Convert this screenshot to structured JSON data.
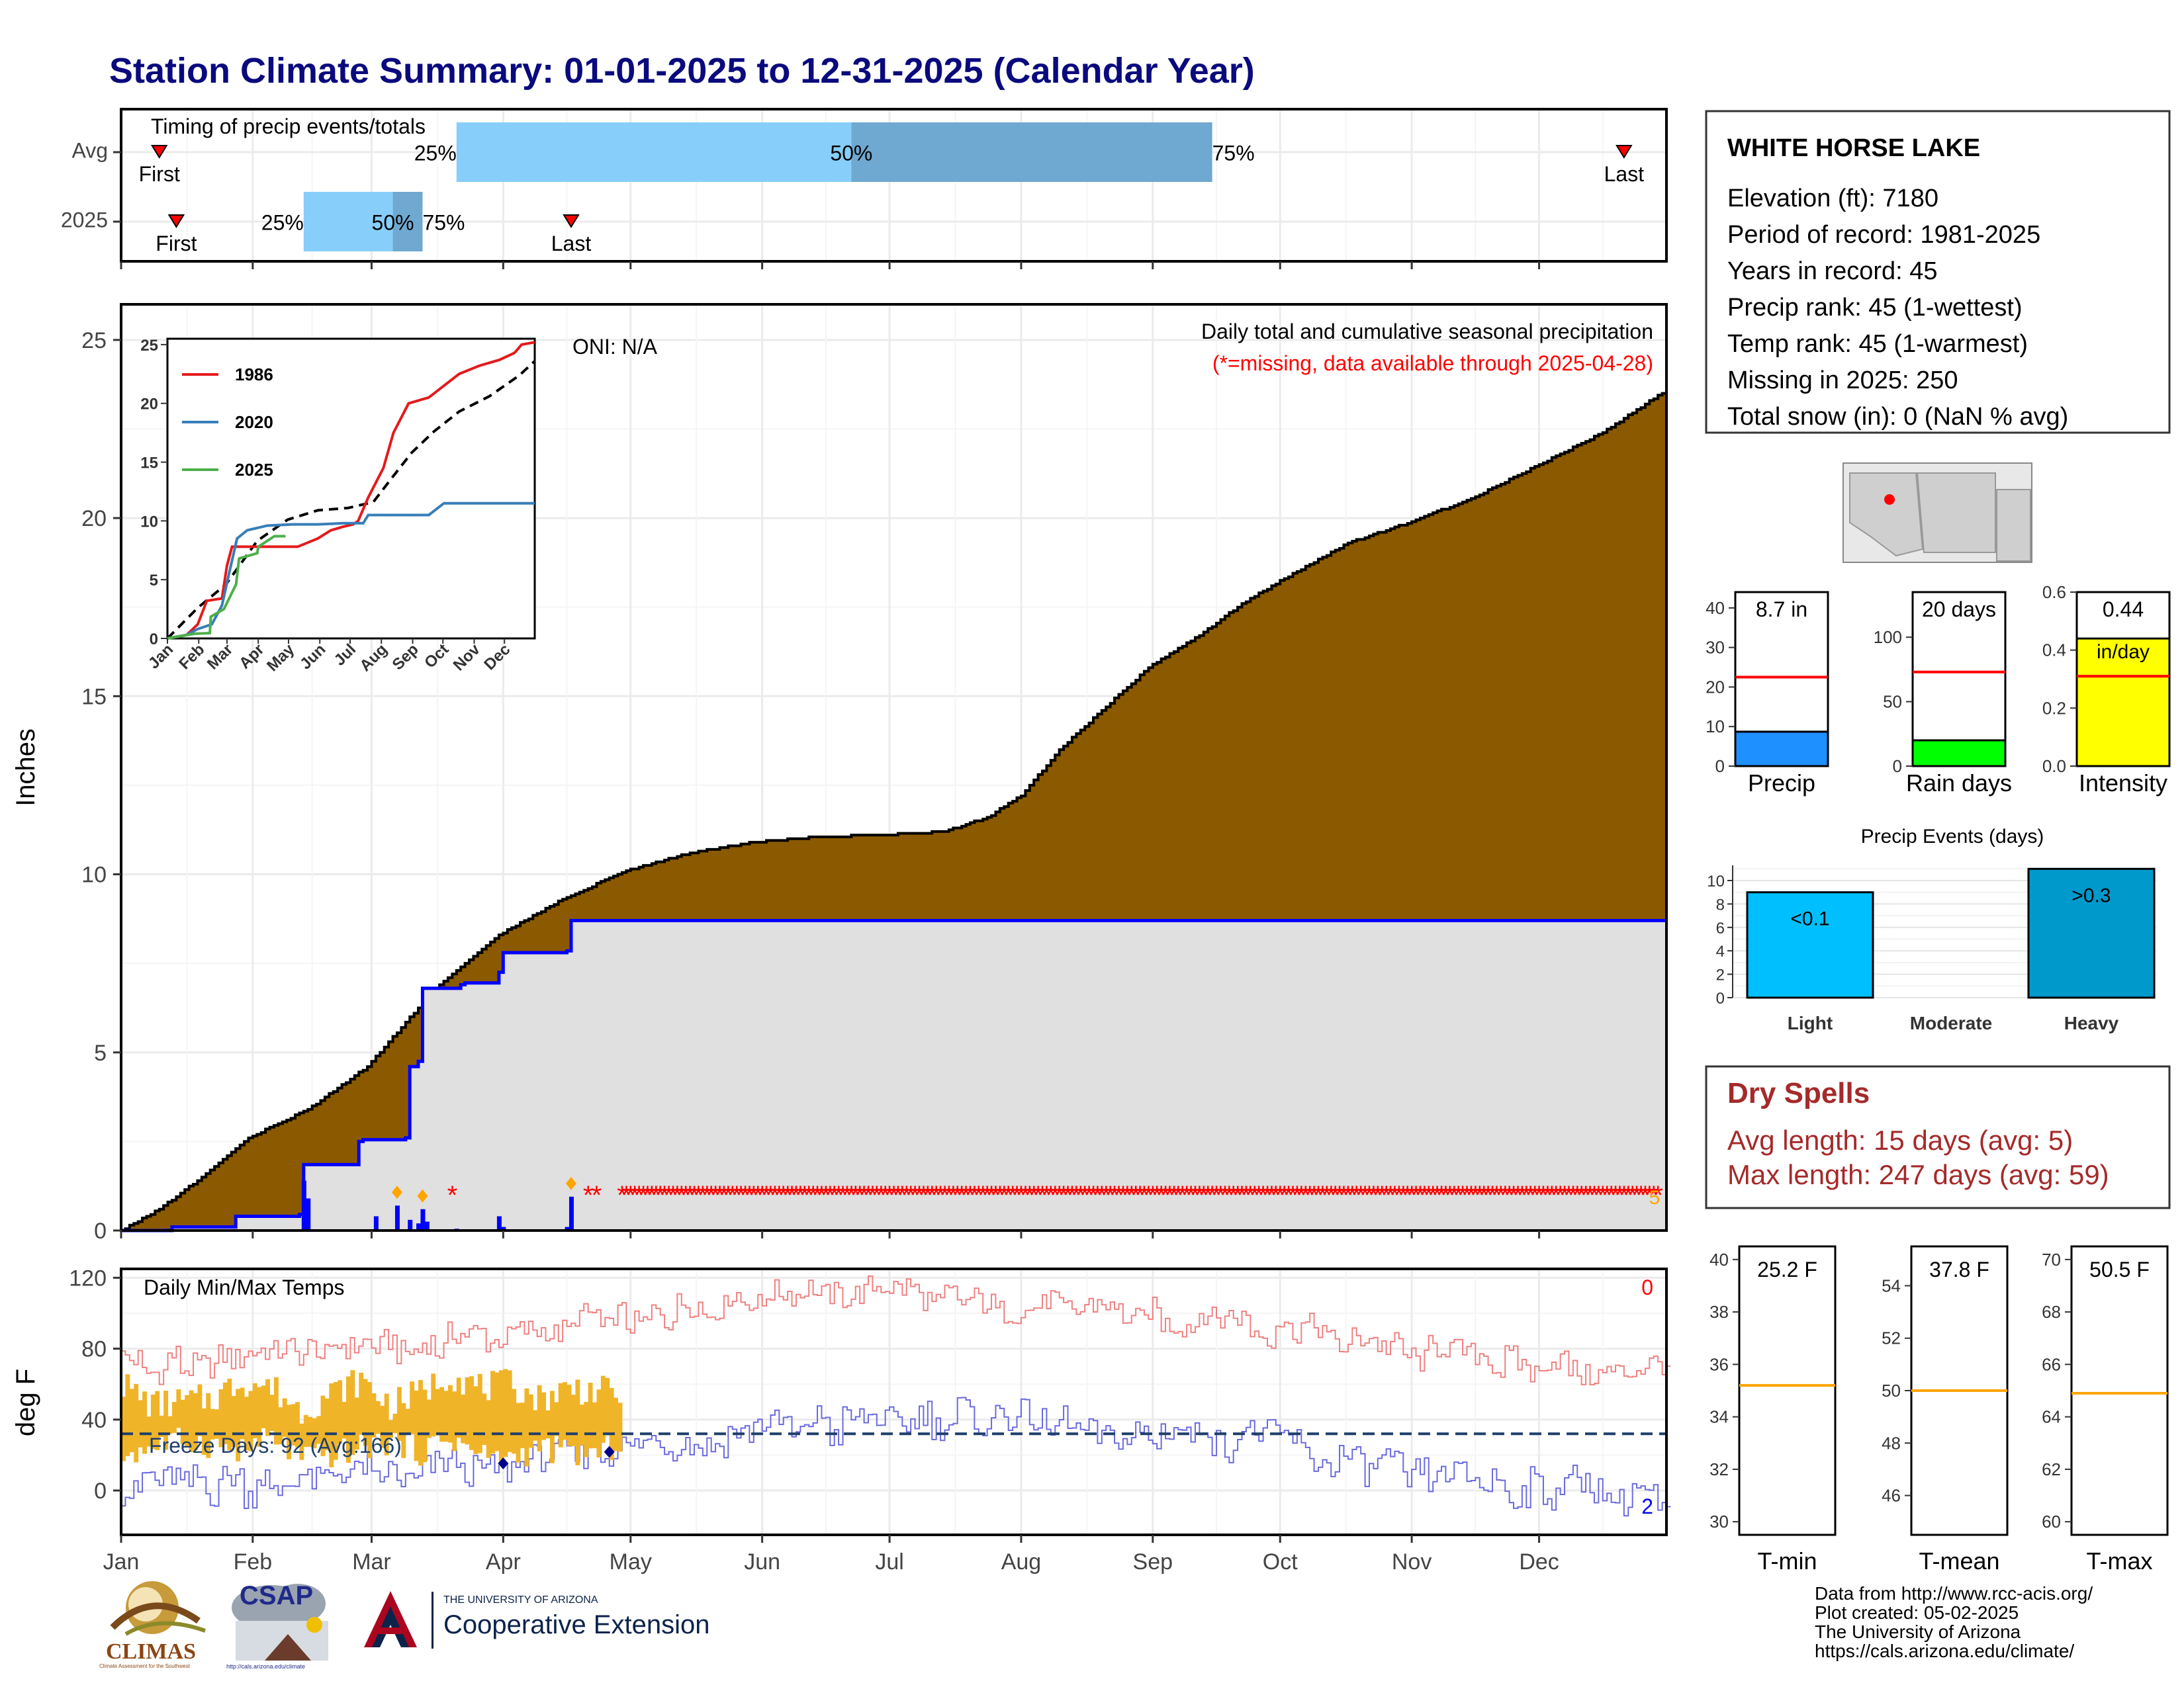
{
  "title": "Station Climate Summary: 01-01-2025 to 12-31-2025 (Calendar Year)",
  "colors": {
    "title": "#0a0a7e",
    "precip_fill": "#8b5a00",
    "obs_fill": "#e0e0e0",
    "obs_line": "#0000ff",
    "q_light": "#87cefa",
    "q_dark": "#6fa8d0",
    "missing": "#ff0000",
    "dry_spells": "#a52a2a",
    "freeze_fill": "#f0b429",
    "tmax_line": "#f08080",
    "tmin_line": "#6a6ae0",
    "avg_line": "#1f3f6a",
    "bar_precip": "#1e90ff",
    "bar_rain": "#00ff00",
    "bar_intensity": "#ffff00",
    "bar_light": "#00bfff",
    "bar_heavy": "#0099cc",
    "orange_line": "#ffa500"
  },
  "months": [
    "Jan",
    "Feb",
    "Mar",
    "Apr",
    "May",
    "Jun",
    "Jul",
    "Aug",
    "Sep",
    "Oct",
    "Nov",
    "Dec"
  ],
  "timing": {
    "label": "Timing of precip events/totals",
    "rows": [
      "Avg",
      "2025"
    ],
    "first_label": "First",
    "last_label": "Last",
    "p25": "25%",
    "p50": "50%",
    "p75": "75%",
    "avg": {
      "first_day": 10,
      "p25_day": 80,
      "p50_day": 173,
      "p75_day": 258,
      "last_day": 355
    },
    "y2025": {
      "first_day": 14,
      "p25_day": 44,
      "p50_day": 65,
      "p75_day": 72,
      "last_day": 107
    }
  },
  "chart_data": [
    {
      "type": "area",
      "title": "Daily total and cumulative seasonal precipitation",
      "subtitle": "(*=missing, data available through 2025-04-28)",
      "ylabel": "Inches",
      "ylim": [
        0,
        26
      ],
      "yticks": [
        0,
        5,
        10,
        15,
        20,
        25
      ],
      "oni": "ONI: N/A",
      "missing_count_label": "5",
      "avg_cumulative": {
        "day": [
          1,
          10,
          20,
          31,
          45,
          59,
          75,
          90,
          105,
          120,
          135,
          150,
          165,
          180,
          195,
          205,
          213,
          222,
          232,
          243,
          255,
          265,
          275,
          290,
          305,
          320,
          335,
          350,
          365
        ],
        "inches": [
          0,
          0.6,
          1.5,
          2.6,
          3.4,
          4.6,
          6.8,
          8.3,
          9.3,
          10.1,
          10.6,
          10.9,
          11.05,
          11.1,
          11.2,
          11.6,
          12.2,
          13.5,
          14.6,
          15.8,
          16.7,
          17.6,
          18.3,
          19.3,
          19.9,
          20.6,
          21.5,
          22.4,
          23.6
        ]
      },
      "obs_cumulative": {
        "day": [
          1,
          13,
          28,
          43,
          44,
          57,
          58,
          68,
          69,
          71,
          72,
          81,
          82,
          90,
          91,
          106,
          107,
          118
        ],
        "inches": [
          0,
          0.1,
          0.4,
          0.45,
          1.85,
          2.5,
          2.55,
          2.6,
          4.6,
          4.75,
          6.8,
          6.9,
          6.95,
          7.25,
          7.8,
          7.85,
          8.7,
          8.7
        ]
      },
      "daily_bars": {
        "day": [
          12,
          25,
          44,
          45,
          61,
          66,
          69,
          71,
          72,
          73,
          80,
          90,
          91,
          106,
          107
        ],
        "inches": [
          0.05,
          0.02,
          1.4,
          0.9,
          0.4,
          0.7,
          0.3,
          0.2,
          0.6,
          0.25,
          0.05,
          0.4,
          0.1,
          0.1,
          0.95
        ]
      },
      "snow_markers_day": [
        66,
        72,
        107
      ],
      "missing_days_start": 119,
      "missing_days_sparse": [
        79,
        111,
        113
      ]
    },
    {
      "type": "line",
      "title": "Daily Min/Max Temps",
      "ylabel": "deg F",
      "ylim": [
        -25,
        125
      ],
      "yticks": [
        0,
        40,
        80,
        120
      ],
      "freeze_label": "Freeze Days: 92 (Avg:166)",
      "freeze_line": 32,
      "count_top": "0",
      "count_bottom": "2",
      "avg_max": {
        "day": [
          1,
          15,
          31,
          45,
          59,
          75,
          90,
          105,
          120,
          135,
          150,
          165,
          180,
          195,
          210,
          225,
          240,
          255,
          270,
          285,
          300,
          315,
          330,
          345,
          365
        ],
        "value": [
          70,
          73,
          75,
          77,
          79,
          83,
          87,
          93,
          96,
          101,
          108,
          110,
          114,
          108,
          103,
          104,
          101,
          97,
          91,
          87,
          80,
          76,
          71,
          70,
          67
        ]
      },
      "avg_min": {
        "day": [
          1,
          15,
          31,
          45,
          59,
          75,
          90,
          105,
          120,
          135,
          150,
          165,
          180,
          195,
          210,
          225,
          240,
          255,
          270,
          285,
          300,
          315,
          330,
          345,
          365
        ],
        "value": [
          3,
          5,
          2,
          4,
          8,
          12,
          16,
          21,
          26,
          30,
          34,
          36,
          40,
          42,
          39,
          37,
          34,
          31,
          27,
          20,
          13,
          7,
          3,
          0,
          -6
        ]
      },
      "obs_max": {
        "day": [
          1,
          8,
          15,
          22,
          29,
          36,
          43,
          50,
          57,
          64,
          71,
          78,
          85,
          92,
          99,
          106,
          113,
          118
        ],
        "value": [
          60,
          48,
          50,
          52,
          62,
          58,
          45,
          55,
          62,
          48,
          55,
          66,
          58,
          60,
          52,
          58,
          56,
          55
        ]
      },
      "obs_min": {
        "day": [
          1,
          8,
          15,
          22,
          29,
          36,
          43,
          50,
          57,
          64,
          71,
          78,
          85,
          92,
          99,
          106,
          113,
          118
        ],
        "value": [
          20,
          25,
          28,
          26,
          22,
          30,
          18,
          20,
          24,
          28,
          22,
          30,
          20,
          18,
          24,
          22,
          20,
          28
        ]
      },
      "record_low_days": [
        91,
        116
      ]
    }
  ],
  "inset": {
    "yticks": [
      0,
      5,
      10,
      15,
      20,
      25
    ],
    "ylim": [
      0,
      25.5
    ],
    "legend": [
      "1986",
      "2020",
      "2025"
    ],
    "series": [
      {
        "name": "1986",
        "color": "#e41a1c",
        "day": [
          1,
          20,
          31,
          40,
          55,
          60,
          65,
          80,
          90,
          100,
          130,
          150,
          163,
          175,
          185,
          190,
          200,
          215,
          225,
          240,
          260,
          275,
          290,
          310,
          330,
          345,
          352,
          365
        ],
        "inches": [
          0,
          0.3,
          1.2,
          3.2,
          3.4,
          6.2,
          7.8,
          7.8,
          7.8,
          7.8,
          7.8,
          8.5,
          9.2,
          9.5,
          9.7,
          10.0,
          12.0,
          14.5,
          17.5,
          20.0,
          20.5,
          21.5,
          22.5,
          23.2,
          23.7,
          24.3,
          25.0,
          25.2
        ]
      },
      {
        "name": "2020",
        "color": "#377eb8",
        "day": [
          1,
          20,
          31,
          45,
          55,
          62,
          70,
          80,
          100,
          125,
          150,
          175,
          195,
          200,
          260,
          275,
          365
        ],
        "inches": [
          0,
          0.3,
          0.8,
          1.2,
          2.8,
          5.5,
          8.5,
          9.2,
          9.6,
          9.7,
          9.7,
          9.8,
          9.8,
          10.5,
          10.5,
          11.5,
          11.5
        ]
      },
      {
        "name": "2025",
        "color": "#4daf4a",
        "day": [
          1,
          28,
          43,
          44,
          57,
          69,
          72,
          90,
          91,
          107,
          118
        ],
        "inches": [
          0,
          0.4,
          0.45,
          1.85,
          2.5,
          4.6,
          6.8,
          7.25,
          7.8,
          8.7,
          8.7
        ]
      }
    ],
    "avg": {
      "day": [
        1,
        31,
        59,
        90,
        120,
        150,
        180,
        205,
        222,
        243,
        265,
        290,
        320,
        350,
        365
      ],
      "inches": [
        0,
        2.6,
        4.6,
        8.3,
        10.1,
        10.9,
        11.1,
        11.6,
        13.5,
        15.8,
        17.6,
        19.3,
        20.6,
        22.4,
        23.6
      ]
    }
  },
  "station": {
    "name": "WHITE HORSE LAKE",
    "lines": [
      "Elevation (ft): 7180",
      "Period of record: 1981-2025",
      "Years in record: 45",
      "Precip rank: 45 (1-wettest)",
      "Temp rank: 45 (1-warmest)",
      "Missing in 2025: 250",
      "Total snow (in): 0 (NaN % avg)"
    ]
  },
  "summary_bars": [
    {
      "label": "Precip",
      "value_text": "8.7 in",
      "value": 8.7,
      "avg": 22.5,
      "ymax": 44,
      "ticks": [
        0,
        10,
        20,
        30,
        40
      ],
      "color_key": "bar_precip"
    },
    {
      "label": "Rain days",
      "value_text": "20 days",
      "value": 20,
      "avg": 73,
      "ymax": 135,
      "ticks": [
        0,
        50,
        100
      ],
      "color_key": "bar_rain"
    },
    {
      "label": "Intensity",
      "value_text": "0.44",
      "value_text2": "in/day",
      "value": 0.44,
      "avg": 0.31,
      "ymax": 0.6,
      "ticks": [
        "0.0",
        "0.2",
        "0.4",
        "0.6"
      ],
      "color_key": "bar_intensity"
    }
  ],
  "events": {
    "title": "Precip Events (days)",
    "categories": [
      "Light",
      "Moderate",
      "Heavy"
    ],
    "values": [
      9,
      0,
      11
    ],
    "bar_labels": [
      "<0.1",
      "",
      ">0.3"
    ],
    "ticks": [
      0,
      2,
      4,
      6,
      8,
      10
    ],
    "ymax": 11.3
  },
  "dry_spells": {
    "title": "Dry Spells",
    "avg_line": "Avg length: 15 days (avg: 5)",
    "max_line": "Max length: 247 days (avg: 59)"
  },
  "temp_bars": [
    {
      "label": "T-min",
      "value_text": "25.2 F",
      "value": 25.2,
      "avg": 35.2,
      "ylim": [
        29.5,
        40.5
      ],
      "ticks": [
        30,
        32,
        34,
        36,
        38,
        40
      ]
    },
    {
      "label": "T-mean",
      "value_text": "37.8 F",
      "value": 37.8,
      "avg": 50.0,
      "ylim": [
        44.5,
        55.5
      ],
      "ticks": [
        46,
        48,
        50,
        52,
        54
      ]
    },
    {
      "label": "T-max",
      "value_text": "50.5 F",
      "value": 50.5,
      "avg": 64.9,
      "ylim": [
        59.5,
        70.5
      ],
      "ticks": [
        60,
        62,
        64,
        66,
        68,
        70
      ]
    }
  ],
  "credits": [
    "Data from http://www.rcc-acis.org/",
    "Plot created: 05-02-2025",
    "The University of Arizona",
    "https://cals.arizona.edu/climate/"
  ],
  "logos": {
    "climas": "CLIMAS",
    "climas_sub": "Climate Assessment for the Southwest",
    "csap": "CSAP",
    "csap_url": "http://cals.arizona.edu/climate",
    "ua_small": "THE UNIVERSITY OF ARIZONA",
    "ua_big": "Cooperative Extension"
  }
}
